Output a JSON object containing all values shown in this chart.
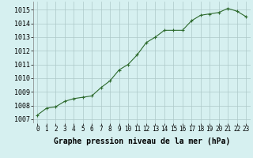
{
  "x": [
    0,
    1,
    2,
    3,
    4,
    5,
    6,
    7,
    8,
    9,
    10,
    11,
    12,
    13,
    14,
    15,
    16,
    17,
    18,
    19,
    20,
    21,
    22,
    23
  ],
  "y": [
    1007.3,
    1007.8,
    1007.9,
    1008.3,
    1008.5,
    1008.6,
    1008.7,
    1009.3,
    1009.8,
    1010.6,
    1011.0,
    1011.7,
    1012.6,
    1013.0,
    1013.5,
    1013.5,
    1013.5,
    1014.2,
    1014.6,
    1014.7,
    1014.8,
    1015.1,
    1014.9,
    1014.5
  ],
  "line_color": "#2d6a2d",
  "marker": "+",
  "marker_size": 3,
  "bg_color": "#d6f0f0",
  "grid_color": "#adc8c8",
  "xlabel": "Graphe pression niveau de la mer (hPa)",
  "xlabel_fontsize": 7,
  "xlabel_fontweight": "bold",
  "ytick_labels": [
    "1007",
    "1008",
    "1009",
    "1010",
    "1011",
    "1012",
    "1013",
    "1014",
    "1015"
  ],
  "ytick_vals": [
    1007,
    1008,
    1009,
    1010,
    1011,
    1012,
    1013,
    1014,
    1015
  ],
  "xtick_vals": [
    0,
    1,
    2,
    3,
    4,
    5,
    6,
    7,
    8,
    9,
    10,
    11,
    12,
    13,
    14,
    15,
    16,
    17,
    18,
    19,
    20,
    21,
    22,
    23
  ],
  "ylim": [
    1006.7,
    1015.6
  ],
  "xlim": [
    -0.5,
    23.5
  ],
  "tick_fontsize": 5.5,
  "ytick_fontsize": 6.0,
  "linewidth": 0.8
}
